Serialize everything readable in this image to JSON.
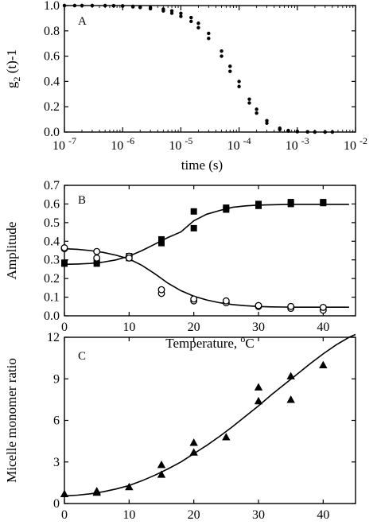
{
  "chart_data": [
    {
      "panel": "A",
      "type": "scatter",
      "xscale": "log",
      "xlim": [
        1e-07,
        0.01
      ],
      "ylim": [
        0,
        1.0
      ],
      "xlabel": "time (s)",
      "ylabel": "g2(t)-1",
      "ylabel_main": "g",
      "ylabel_sub": "2",
      "ylabel_rest": " (t)-1",
      "xticks": [
        {
          "v": 1e-07,
          "base": "10",
          "exp": "-7"
        },
        {
          "v": 1e-06,
          "base": "10",
          "exp": "-6"
        },
        {
          "v": 1e-05,
          "base": "10",
          "exp": "-5"
        },
        {
          "v": 0.0001,
          "base": "10",
          "exp": "-4"
        },
        {
          "v": 0.001,
          "base": "10",
          "exp": "-3"
        },
        {
          "v": 0.01,
          "base": "10",
          "exp": "-2"
        }
      ],
      "yticks": [
        "0.0",
        "0.2",
        "0.4",
        "0.6",
        "0.8",
        "1.0"
      ],
      "series": [
        {
          "style": "filled-circle",
          "x": [
            1e-07,
            1.5e-07,
            2e-07,
            3e-07,
            5e-07,
            7e-07,
            1e-06,
            1.5e-06,
            2e-06,
            3e-06,
            5e-06,
            7e-06,
            1e-05,
            1.5e-05,
            2e-05,
            3e-05,
            5e-05,
            7e-05,
            0.0001,
            0.00015,
            0.0002,
            0.0003,
            0.0005,
            0.0007,
            0.001,
            0.0015,
            0.002,
            0.003,
            0.004
          ],
          "y": [
            1.0,
            1.0,
            1.0,
            1.0,
            1.0,
            0.999,
            0.998,
            0.994,
            0.99,
            0.985,
            0.972,
            0.958,
            0.938,
            0.905,
            0.86,
            0.78,
            0.64,
            0.52,
            0.4,
            0.26,
            0.18,
            0.09,
            0.03,
            0.012,
            0.005,
            0.002,
            0.0,
            0.0,
            0.0
          ]
        },
        {
          "style": "filled-circle",
          "x": [
            1e-07,
            1.5e-07,
            2e-07,
            3e-07,
            5e-07,
            7e-07,
            1e-06,
            1.5e-06,
            2e-06,
            3e-06,
            5e-06,
            7e-06,
            1e-05,
            1.5e-05,
            2e-05,
            3e-05,
            5e-05,
            7e-05,
            0.0001,
            0.00015,
            0.0002,
            0.0003,
            0.0005,
            0.0007,
            0.001,
            0.0015,
            0.002,
            0.003,
            0.004
          ],
          "y": [
            1.0,
            1.0,
            1.0,
            1.0,
            0.999,
            0.998,
            0.996,
            0.99,
            0.985,
            0.975,
            0.958,
            0.94,
            0.915,
            0.875,
            0.825,
            0.74,
            0.6,
            0.48,
            0.36,
            0.23,
            0.15,
            0.07,
            0.02,
            0.008,
            0.003,
            0.001,
            0.0,
            0.0,
            0.0
          ]
        }
      ],
      "annotation": "A"
    },
    {
      "panel": "B",
      "type": "scatter",
      "xlim": [
        0,
        45
      ],
      "ylim": [
        0,
        0.7
      ],
      "xlabel": "Temperature, ",
      "xlabel_sup": "o",
      "xlabel_unit": "C",
      "ylabel": "Amplitude",
      "xticks": [
        0,
        10,
        20,
        30,
        40
      ],
      "yticks": [
        "0.0",
        "0.1",
        "0.2",
        "0.3",
        "0.4",
        "0.5",
        "0.6",
        "0.7"
      ],
      "series": [
        {
          "style": "filled-square",
          "x": [
            0,
            0,
            5,
            5,
            10,
            10,
            15,
            15,
            20,
            20,
            25,
            25,
            30,
            30,
            35,
            35,
            40,
            40
          ],
          "y": [
            0.28,
            0.285,
            0.28,
            0.29,
            0.31,
            0.32,
            0.39,
            0.41,
            0.47,
            0.56,
            0.57,
            0.58,
            0.59,
            0.6,
            0.61,
            0.6,
            0.605,
            0.61
          ]
        },
        {
          "style": "open-circle",
          "x": [
            0,
            0,
            5,
            5,
            10,
            10,
            15,
            15,
            20,
            20,
            25,
            25,
            30,
            30,
            35,
            35,
            40,
            40
          ],
          "y": [
            0.36,
            0.365,
            0.31,
            0.345,
            0.32,
            0.31,
            0.12,
            0.14,
            0.08,
            0.09,
            0.07,
            0.08,
            0.05,
            0.055,
            0.04,
            0.05,
            0.03,
            0.045
          ]
        }
      ],
      "fit_curves": [
        {
          "x": [
            0,
            2,
            4,
            6,
            8,
            10,
            12,
            14,
            16,
            18,
            20,
            22,
            24,
            26,
            28,
            30,
            32,
            34,
            36,
            38,
            40,
            42,
            44
          ],
          "y": [
            0.276,
            0.278,
            0.281,
            0.288,
            0.3,
            0.32,
            0.35,
            0.385,
            0.42,
            0.45,
            0.51,
            0.545,
            0.565,
            0.582,
            0.59,
            0.594,
            0.596,
            0.597,
            0.598,
            0.598,
            0.598,
            0.598,
            0.598
          ]
        },
        {
          "x": [
            0,
            2,
            4,
            6,
            8,
            10,
            12,
            14,
            16,
            18,
            20,
            22,
            24,
            26,
            28,
            30,
            32,
            34,
            36,
            38,
            40,
            42,
            44
          ],
          "y": [
            0.36,
            0.357,
            0.35,
            0.34,
            0.325,
            0.305,
            0.27,
            0.225,
            0.175,
            0.135,
            0.105,
            0.085,
            0.07,
            0.06,
            0.054,
            0.05,
            0.048,
            0.047,
            0.046,
            0.046,
            0.046,
            0.046,
            0.046
          ]
        }
      ],
      "annotation": "B"
    },
    {
      "panel": "C",
      "type": "scatter",
      "xlim": [
        0,
        45
      ],
      "ylim": [
        0,
        12
      ],
      "xlabel": "Temperature, ",
      "xlabel_sup": "o",
      "xlabel_unit": "C",
      "ylabel": "Micelle monomer ratio",
      "xticks": [
        0,
        10,
        20,
        30,
        40
      ],
      "yticks": [
        "0",
        "3",
        "6",
        "9",
        "12"
      ],
      "series": [
        {
          "style": "filled-triangle",
          "x": [
            0,
            5,
            5,
            10,
            15,
            15,
            20,
            20,
            25,
            30,
            30,
            35,
            35,
            40
          ],
          "y": [
            0.7,
            0.8,
            0.9,
            1.2,
            2.1,
            2.8,
            3.7,
            4.4,
            4.8,
            7.4,
            8.4,
            7.5,
            9.2,
            10.0
          ]
        }
      ],
      "fit_curves": [
        {
          "x": [
            0,
            2,
            4,
            6,
            8,
            10,
            12,
            14,
            16,
            18,
            20,
            22,
            24,
            26,
            28,
            30,
            32,
            34,
            36,
            38,
            40,
            42,
            44,
            45
          ],
          "y": [
            0.55,
            0.6,
            0.7,
            0.85,
            1.05,
            1.3,
            1.65,
            2.05,
            2.5,
            3.0,
            3.6,
            4.2,
            4.85,
            5.55,
            6.3,
            7.05,
            7.85,
            8.6,
            9.35,
            10.1,
            10.8,
            11.45,
            12.0,
            12.2
          ]
        }
      ],
      "annotation": "C"
    }
  ]
}
